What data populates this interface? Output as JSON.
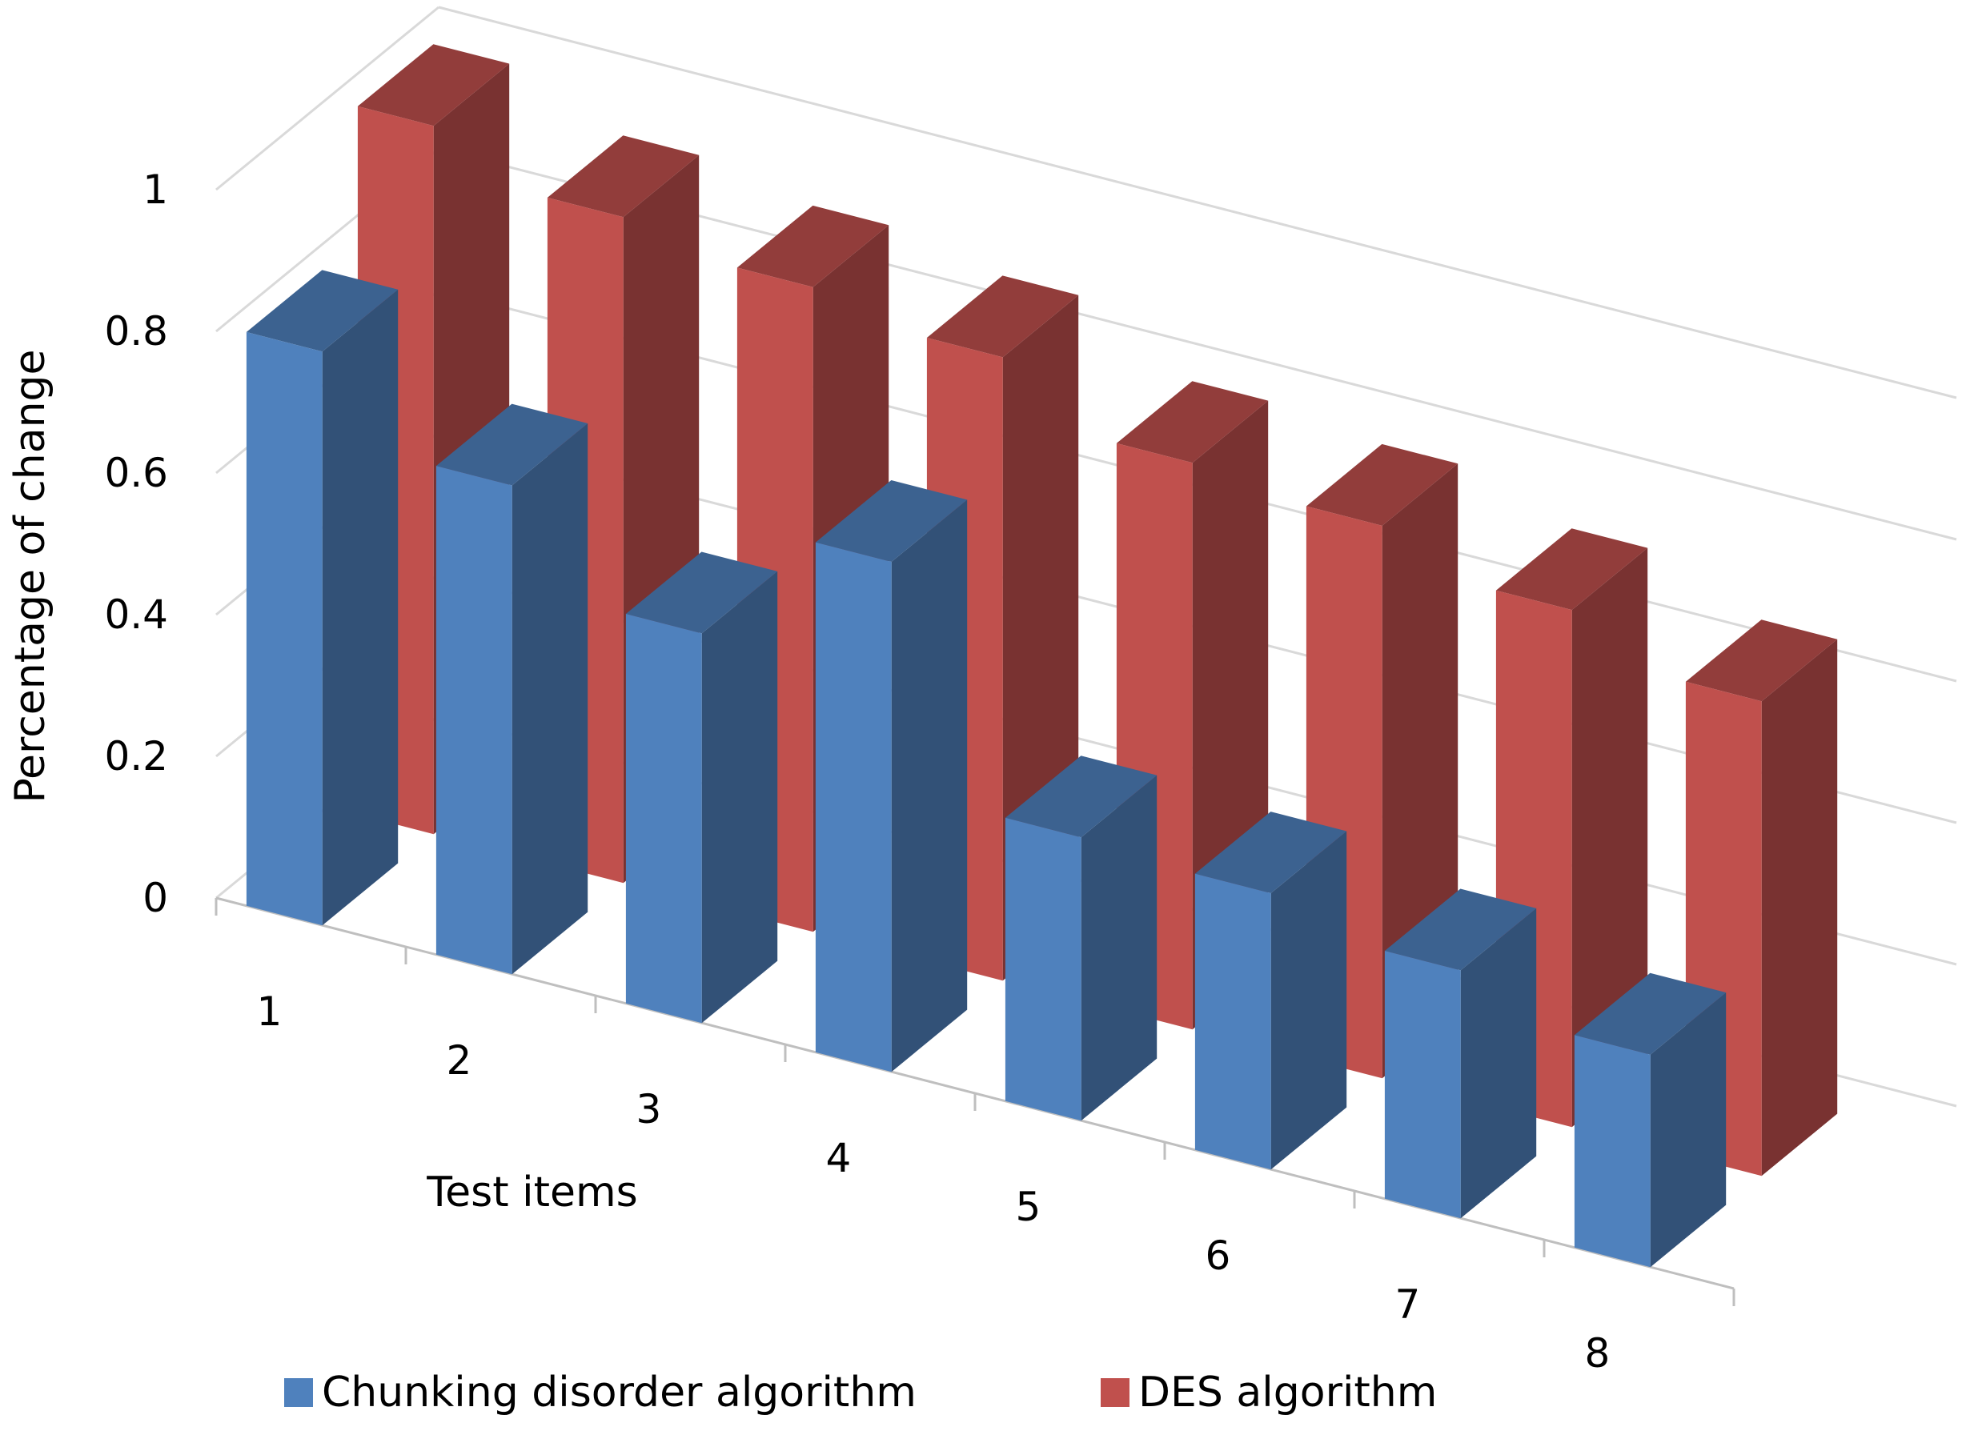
{
  "chart_data": {
    "type": "bar",
    "subtype": "3d-clustered-depth",
    "title": "",
    "xlabel": "Test items",
    "ylabel": "Percentage of change",
    "categories": [
      "1",
      "2",
      "3",
      "4",
      "5",
      "6",
      "7",
      "8"
    ],
    "ylim": [
      0,
      1
    ],
    "yticks": [
      "0",
      "0.2",
      "0.4",
      "0.6",
      "0.8",
      "1"
    ],
    "grid": true,
    "legend_position": "bottom",
    "series": [
      {
        "name": "Chunking disorder algorithm",
        "color": "#4f81bd",
        "values": [
          0.81,
          0.69,
          0.55,
          0.72,
          0.4,
          0.39,
          0.35,
          0.3
        ]
      },
      {
        "name": "DES algorithm",
        "color": "#c0504d",
        "values": [
          1.0,
          0.94,
          0.91,
          0.88,
          0.8,
          0.78,
          0.73,
          0.67
        ]
      }
    ]
  }
}
